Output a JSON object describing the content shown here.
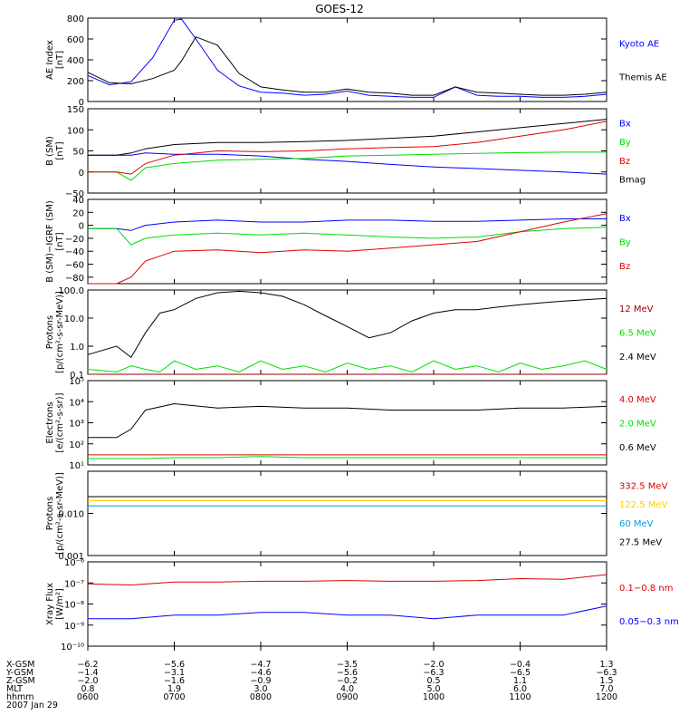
{
  "title": "GOES-12",
  "colors": {
    "black": "#000000",
    "blue": "#0000ff",
    "red": "#dd0000",
    "green": "#00dd00",
    "darkred": "#990000",
    "yellow": "#ffd000",
    "cyan": "#00a0e0"
  },
  "chart_data": [
    {
      "type": "line",
      "id": "ae",
      "ylabel": [
        "AE Index",
        "[nT]"
      ],
      "ylim": [
        0,
        800
      ],
      "yscale": "linear",
      "yticks": [
        0,
        200,
        400,
        600,
        800
      ],
      "ytick_labels": [
        "0",
        "200",
        "400",
        "600",
        "800"
      ],
      "x": [
        "0600",
        "0615",
        "0630",
        "0645",
        "0700",
        "0705",
        "0715",
        "0730",
        "0745",
        "0800",
        "0815",
        "0830",
        "0845",
        "0900",
        "0915",
        "0930",
        "0945",
        "1000",
        "1015",
        "1030",
        "1045",
        "1100",
        "1115",
        "1130",
        "1145",
        "1200"
      ],
      "series": [
        {
          "name": "Kyoto AE",
          "color": "blue",
          "values": [
            250,
            160,
            190,
            420,
            780,
            790,
            600,
            300,
            150,
            90,
            80,
            60,
            70,
            100,
            60,
            50,
            40,
            40,
            140,
            60,
            50,
            50,
            40,
            40,
            50,
            70
          ]
        },
        {
          "name": "Themis AE",
          "color": "black",
          "values": [
            280,
            180,
            170,
            220,
            300,
            390,
            620,
            540,
            270,
            140,
            110,
            90,
            90,
            120,
            90,
            80,
            60,
            60,
            140,
            90,
            80,
            70,
            60,
            60,
            70,
            90
          ]
        }
      ]
    },
    {
      "type": "line",
      "id": "bsm",
      "ylabel": [
        "B (SM)",
        "[nT]"
      ],
      "ylim": [
        -50,
        150
      ],
      "yscale": "linear",
      "yticks": [
        -50,
        0,
        50,
        100,
        150
      ],
      "ytick_labels": [
        "−50",
        "0",
        "50",
        "100",
        "150"
      ],
      "x": [
        "0600",
        "0620",
        "0630",
        "0640",
        "0700",
        "0730",
        "0800",
        "0830",
        "0900",
        "0930",
        "1000",
        "1030",
        "1100",
        "1130",
        "1200"
      ],
      "series": [
        {
          "name": "Bx",
          "color": "blue",
          "values": [
            40,
            40,
            40,
            45,
            42,
            42,
            38,
            30,
            25,
            18,
            12,
            8,
            4,
            0,
            -5
          ]
        },
        {
          "name": "By",
          "color": "green",
          "values": [
            0,
            0,
            -20,
            10,
            20,
            28,
            30,
            32,
            38,
            40,
            42,
            44,
            46,
            47,
            47
          ]
        },
        {
          "name": "Bz",
          "color": "red",
          "values": [
            0,
            0,
            -5,
            20,
            40,
            50,
            48,
            50,
            55,
            58,
            60,
            70,
            85,
            100,
            120
          ]
        },
        {
          "name": "Bmag",
          "color": "black",
          "values": [
            40,
            40,
            45,
            55,
            65,
            70,
            70,
            72,
            75,
            80,
            85,
            95,
            105,
            115,
            125
          ]
        }
      ]
    },
    {
      "type": "line",
      "id": "bigrf",
      "ylabel": [
        "B (SM)−IGRF (SM)",
        "[nT]"
      ],
      "ylim": [
        -90,
        40
      ],
      "yscale": "linear",
      "yticks": [
        -80,
        -60,
        -40,
        -20,
        0,
        20,
        40
      ],
      "ytick_labels": [
        "−80",
        "−60",
        "−40",
        "−20",
        "0",
        "20",
        "40"
      ],
      "x": [
        "0600",
        "0620",
        "0630",
        "0640",
        "0700",
        "0730",
        "0800",
        "0830",
        "0900",
        "0930",
        "1000",
        "1030",
        "1100",
        "1130",
        "1200"
      ],
      "series": [
        {
          "name": "Bx",
          "color": "blue",
          "values": [
            -5,
            -5,
            -8,
            0,
            5,
            8,
            5,
            5,
            8,
            8,
            6,
            6,
            8,
            10,
            10
          ]
        },
        {
          "name": "By",
          "color": "green",
          "values": [
            -5,
            -5,
            -30,
            -20,
            -15,
            -12,
            -15,
            -12,
            -15,
            -18,
            -20,
            -18,
            -10,
            -5,
            -3
          ]
        },
        {
          "name": "Bz",
          "color": "red",
          "values": [
            -90,
            -90,
            -80,
            -55,
            -40,
            -38,
            -42,
            -38,
            -40,
            -35,
            -30,
            -25,
            -10,
            5,
            18
          ]
        }
      ]
    },
    {
      "type": "line",
      "id": "protons_hi",
      "ylabel": [
        "Protons",
        "[p/(cm²-s-sr-MeV)]"
      ],
      "ylim": [
        0.1,
        100
      ],
      "yscale": "log",
      "yticks": [
        0.1,
        1,
        10,
        100
      ],
      "ytick_labels": [
        "0.1",
        "1.0",
        "10.0",
        "100.0"
      ],
      "x": [
        "0600",
        "0620",
        "0630",
        "0640",
        "0650",
        "0700",
        "0715",
        "0730",
        "0745",
        "0800",
        "0815",
        "0830",
        "0845",
        "0900",
        "0915",
        "0930",
        "0945",
        "1000",
        "1015",
        "1030",
        "1045",
        "1100",
        "1115",
        "1130",
        "1145",
        "1200"
      ],
      "series": [
        {
          "name": "12 MeV",
          "color": "darkred",
          "values": [
            0.1,
            0.1,
            0.1,
            0.1,
            0.1,
            0.1,
            0.1,
            0.1,
            0.1,
            0.1,
            0.1,
            0.1,
            0.1,
            0.1,
            0.1,
            0.1,
            0.1,
            0.1,
            0.1,
            0.1,
            0.1,
            0.1,
            0.1,
            0.1,
            0.1,
            0.1
          ]
        },
        {
          "name": "6.5 MeV",
          "color": "green",
          "values": [
            0.15,
            0.12,
            0.2,
            0.15,
            0.12,
            0.3,
            0.15,
            0.2,
            0.12,
            0.3,
            0.15,
            0.2,
            0.12,
            0.25,
            0.15,
            0.2,
            0.12,
            0.3,
            0.15,
            0.2,
            0.12,
            0.25,
            0.15,
            0.2,
            0.3,
            0.15
          ]
        },
        {
          "name": "2.4 MeV",
          "color": "black",
          "values": [
            0.5,
            1.0,
            0.4,
            3,
            15,
            20,
            50,
            80,
            90,
            80,
            60,
            30,
            12,
            5,
            2,
            3,
            8,
            15,
            20,
            20,
            25,
            30,
            35,
            40,
            45,
            50
          ]
        }
      ]
    },
    {
      "type": "line",
      "id": "electrons",
      "ylabel": [
        "Electrons",
        "[e/(cm²-s-sr)]"
      ],
      "ylim": [
        10,
        100000
      ],
      "yscale": "log",
      "yticks": [
        10,
        100,
        1000,
        10000,
        100000
      ],
      "ytick_labels": [
        "10¹",
        "10²",
        "10³",
        "10⁴",
        "10⁵"
      ],
      "x": [
        "0600",
        "0620",
        "0630",
        "0640",
        "0700",
        "0730",
        "0800",
        "0830",
        "0900",
        "0930",
        "1000",
        "1030",
        "1100",
        "1130",
        "1200"
      ],
      "series": [
        {
          "name": "4.0 MeV",
          "color": "red",
          "values": [
            30,
            30,
            30,
            30,
            30,
            30,
            30,
            30,
            30,
            30,
            30,
            30,
            30,
            30,
            30
          ]
        },
        {
          "name": "2.0 MeV",
          "color": "green",
          "values": [
            20,
            20,
            20,
            20,
            22,
            22,
            25,
            22,
            22,
            22,
            22,
            22,
            22,
            22,
            22
          ]
        },
        {
          "name": "0.6 MeV",
          "color": "black",
          "values": [
            200,
            200,
            500,
            4000,
            8000,
            5000,
            6000,
            5000,
            5000,
            4000,
            4000,
            4000,
            5000,
            5000,
            6000
          ]
        }
      ]
    },
    {
      "type": "line",
      "id": "protons_lo",
      "ylabel": [
        "Protons",
        "[p/(cm²-s-sr-MeV)]"
      ],
      "ylim": [
        0.001,
        0.1
      ],
      "yscale": "log",
      "yticks": [
        0.001,
        0.01
      ],
      "ytick_labels": [
        "0.001",
        "0.010"
      ],
      "x": [
        "0600",
        "0630",
        "0700",
        "0730",
        "0800",
        "0830",
        "0900",
        "0930",
        "1000",
        "1030",
        "1100",
        "1130",
        "1200"
      ],
      "series": [
        {
          "name": "332.5 MeV",
          "color": "red",
          "values": [
            0.02,
            0.02,
            0.02,
            0.02,
            0.02,
            0.02,
            0.02,
            0.02,
            0.02,
            0.02,
            0.02,
            0.02,
            0.02
          ]
        },
        {
          "name": "122.5 MeV",
          "color": "yellow",
          "values": [
            0.02,
            0.02,
            0.02,
            0.02,
            0.02,
            0.02,
            0.02,
            0.02,
            0.02,
            0.02,
            0.02,
            0.02,
            0.02
          ]
        },
        {
          "name": "60 MeV",
          "color": "cyan",
          "values": [
            0.015,
            0.015,
            0.015,
            0.015,
            0.015,
            0.015,
            0.015,
            0.015,
            0.015,
            0.015,
            0.015,
            0.015,
            0.015
          ]
        },
        {
          "name": "27.5 MeV",
          "color": "black",
          "values": [
            0.025,
            0.025,
            0.025,
            0.025,
            0.025,
            0.025,
            0.025,
            0.025,
            0.025,
            0.025,
            0.025,
            0.025,
            0.025
          ]
        }
      ]
    },
    {
      "type": "line",
      "id": "xray",
      "ylabel": [
        "Xray Flux",
        "[W/m²]"
      ],
      "ylim": [
        1e-10,
        1e-06
      ],
      "yscale": "log",
      "yticks": [
        1e-10,
        1e-09,
        1e-08,
        1e-07,
        1e-06
      ],
      "ytick_labels": [
        "10⁻¹⁰",
        "10⁻⁹",
        "10⁻⁸",
        "10⁻⁷",
        "10⁻⁶"
      ],
      "x": [
        "0600",
        "0630",
        "0700",
        "0730",
        "0800",
        "0830",
        "0900",
        "0930",
        "1000",
        "1030",
        "1100",
        "1130",
        "1200"
      ],
      "series": [
        {
          "name": "0.1−0.8 nm",
          "color": "red",
          "values": [
            9e-08,
            8e-08,
            1.1e-07,
            1.1e-07,
            1.2e-07,
            1.2e-07,
            1.3e-07,
            1.2e-07,
            1.2e-07,
            1.3e-07,
            1.6e-07,
            1.5e-07,
            2.5e-07
          ]
        },
        {
          "name": "0.05−0.3 nm",
          "color": "blue",
          "values": [
            2e-09,
            2e-09,
            3e-09,
            3e-09,
            4e-09,
            4e-09,
            3e-09,
            3e-09,
            2e-09,
            3e-09,
            3e-09,
            3e-09,
            8e-09
          ]
        }
      ]
    }
  ],
  "xaxis": {
    "row_labels": [
      "X-GSM",
      "Y-GSM",
      "Z-GSM",
      "MLT",
      "hhmm"
    ],
    "columns": [
      [
        "−6.2",
        "−1.4",
        "−2.0",
        "0.8",
        "0600"
      ],
      [
        "−5.6",
        "−3.1",
        "−1.6",
        "1.9",
        "0700"
      ],
      [
        "−4.7",
        "−4.6",
        "−0.9",
        "3.0",
        "0800"
      ],
      [
        "−3.5",
        "−5.6",
        "−0.2",
        "4.0",
        "0900"
      ],
      [
        "−2.0",
        "−6.3",
        "0.5",
        "5.0",
        "1000"
      ],
      [
        "−0.4",
        "−6.5",
        "1.1",
        "6.0",
        "1100"
      ],
      [
        "1.3",
        "−6.3",
        "1.5",
        "7.0",
        "1200"
      ]
    ],
    "date": "2007 Jan 29"
  }
}
